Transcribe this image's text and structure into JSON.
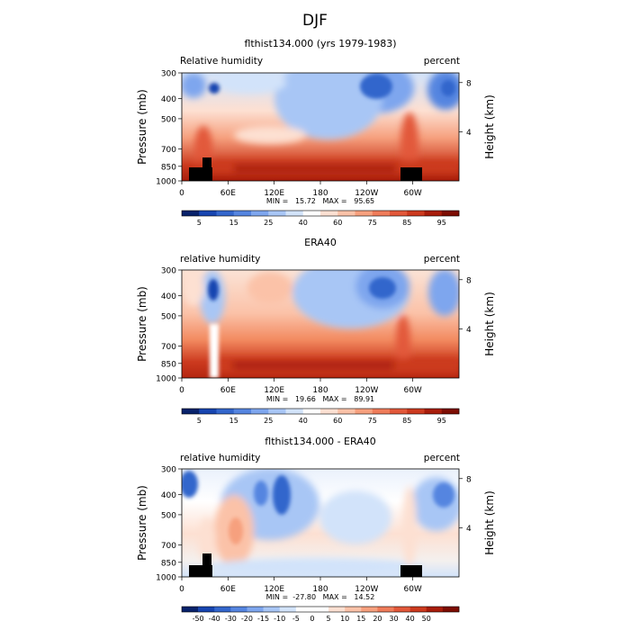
{
  "main_title": "DJF",
  "colors": {
    "rh_scale": [
      "#08226b",
      "#1745b0",
      "#3366cc",
      "#5585e0",
      "#7ea6ee",
      "#a8c6f5",
      "#d2e3fa",
      "#ffffff",
      "#fde0d2",
      "#fbc2a8",
      "#f6a07e",
      "#ef7c5a",
      "#e2583a",
      "#cc3a1f",
      "#a81d0b",
      "#7d0d03"
    ],
    "diff_scale": [
      "#08226b",
      "#1745b0",
      "#3366cc",
      "#5585e0",
      "#7ea6ee",
      "#a8c6f5",
      "#d2e3fa",
      "#ffffff",
      "#ffffff",
      "#fde0d2",
      "#fbc2a8",
      "#f6a07e",
      "#ef7c5a",
      "#e2583a",
      "#cc3a1f",
      "#a81d0b",
      "#7d0d03"
    ]
  },
  "chart_data": [
    {
      "type": "heatmap",
      "title": "flthist134.000 (yrs 1979-1983)",
      "left_label": "Relative humidity",
      "right_label": "percent",
      "ylabel": "Pressure (mb)",
      "y2label": "Height (km)",
      "x_ticks": [
        "0",
        "60E",
        "120E",
        "180",
        "120W",
        "60W"
      ],
      "y_ticks": [
        "300",
        "400",
        "500",
        "700",
        "850",
        "1000"
      ],
      "y2_ticks": [
        "8",
        "4"
      ],
      "stats": "MIN =   15.72   MAX =   95.65",
      "colorbar_labels": [
        "5",
        "15",
        "25",
        "40",
        "60",
        "75",
        "85",
        "95"
      ],
      "grid": false
    },
    {
      "type": "heatmap",
      "title": "ERA40",
      "left_label": "relative humidity",
      "right_label": "percent",
      "ylabel": "Pressure (mb)",
      "y2label": "Height (km)",
      "x_ticks": [
        "0",
        "60E",
        "120E",
        "180",
        "120W",
        "60W"
      ],
      "y_ticks": [
        "300",
        "400",
        "500",
        "700",
        "850",
        "1000"
      ],
      "y2_ticks": [
        "8",
        "4"
      ],
      "stats": "MIN =   19.66   MAX =   89.91",
      "colorbar_labels": [
        "5",
        "15",
        "25",
        "40",
        "60",
        "75",
        "85",
        "95"
      ],
      "grid": false
    },
    {
      "type": "heatmap",
      "title": "flthist134.000 - ERA40",
      "left_label": "relative humidity",
      "right_label": "percent",
      "ylabel": "Pressure (mb)",
      "y2label": "Height (km)",
      "x_ticks": [
        "0",
        "60E",
        "120E",
        "180",
        "120W",
        "60W"
      ],
      "y_ticks": [
        "300",
        "400",
        "500",
        "700",
        "850",
        "1000"
      ],
      "y2_ticks": [
        "8",
        "4"
      ],
      "stats": "MIN =  -27.80   MAX =   14.52",
      "colorbar_labels": [
        "-50",
        "-40",
        "-30",
        "-20",
        "-15",
        "-10",
        "-5",
        "0",
        "5",
        "10",
        "15",
        "20",
        "30",
        "40",
        "50"
      ],
      "grid": false
    }
  ]
}
